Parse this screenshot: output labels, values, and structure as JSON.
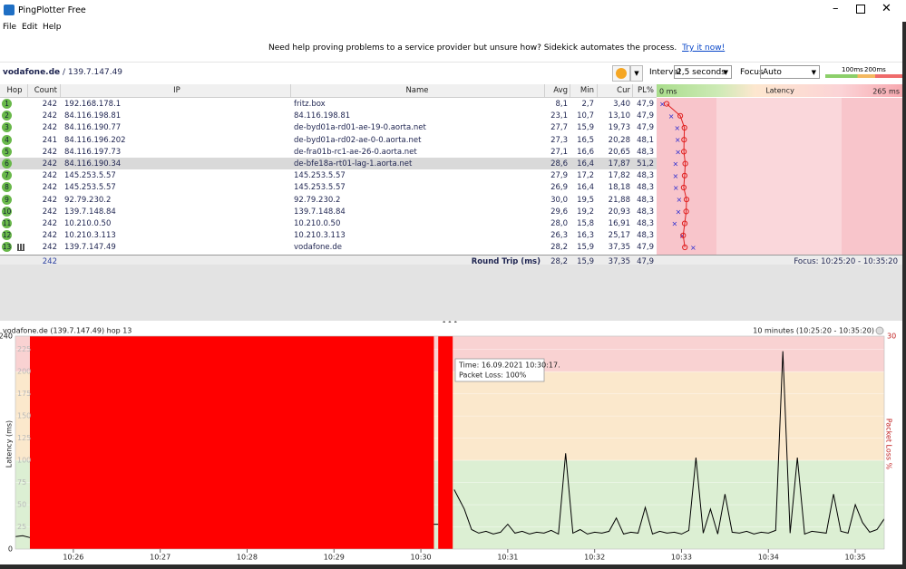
{
  "window": {
    "title": "PingPlotter Free"
  },
  "menu": [
    "File",
    "Edit",
    "Help"
  ],
  "banner": {
    "text": "Need help proving problems to a service provider but unsure how? Sidekick automates the process.",
    "link": "Try it now!"
  },
  "target": {
    "host": "vodafone.de",
    "ip": "/ 139.7.147.49"
  },
  "controls": {
    "interval_label": "Interval",
    "interval": "2,5 seconds",
    "focus_label": "Focus",
    "focus": "Auto",
    "scale_labels": [
      "100ms",
      "200ms"
    ]
  },
  "table": {
    "headers": [
      "Hop",
      "Count",
      "IP",
      "Name",
      "Avg",
      "Min",
      "Cur",
      "PL%"
    ],
    "latency_header": "Latency",
    "latency_scale": [
      {
        "value": 0,
        "label": "0 ms"
      },
      {
        "value": 265,
        "label": "265 ms"
      }
    ],
    "selected_row": 5,
    "rows": [
      {
        "hop": 1,
        "count": 242,
        "ip": "192.168.178.1",
        "name": "fritz.box",
        "avg": "8,1",
        "min": "2,7",
        "cur": "3,40",
        "pl": "47,9"
      },
      {
        "hop": 2,
        "count": 242,
        "ip": "84.116.198.81",
        "name": "84.116.198.81",
        "avg": "23,1",
        "min": "10,7",
        "cur": "13,10",
        "pl": "47,9"
      },
      {
        "hop": 3,
        "count": 242,
        "ip": "84.116.190.77",
        "name": "de-byd01a-rd01-ae-19-0.aorta.net",
        "avg": "27,7",
        "min": "15,9",
        "cur": "19,73",
        "pl": "47,9"
      },
      {
        "hop": 4,
        "count": 241,
        "ip": "84.116.196.202",
        "name": "de-byd01a-rd02-ae-0-0.aorta.net",
        "avg": "27,3",
        "min": "16,5",
        "cur": "20,28",
        "pl": "48,1"
      },
      {
        "hop": 5,
        "count": 242,
        "ip": "84.116.197.73",
        "name": "de-fra01b-rc1-ae-26-0.aorta.net",
        "avg": "27,1",
        "min": "16,6",
        "cur": "20,65",
        "pl": "48,3"
      },
      {
        "hop": 6,
        "count": 242,
        "ip": "84.116.190.34",
        "name": "de-bfe18a-rt01-lag-1.aorta.net",
        "avg": "28,6",
        "min": "16,4",
        "cur": "17,87",
        "pl": "51,2"
      },
      {
        "hop": 7,
        "count": 242,
        "ip": "145.253.5.57",
        "name": "145.253.5.57",
        "avg": "27,9",
        "min": "17,2",
        "cur": "17,82",
        "pl": "48,3"
      },
      {
        "hop": 8,
        "count": 242,
        "ip": "145.253.5.57",
        "name": "145.253.5.57",
        "avg": "26,9",
        "min": "16,4",
        "cur": "18,18",
        "pl": "48,3"
      },
      {
        "hop": 9,
        "count": 242,
        "ip": "92.79.230.2",
        "name": "92.79.230.2",
        "avg": "30,0",
        "min": "19,5",
        "cur": "21,88",
        "pl": "48,3"
      },
      {
        "hop": 10,
        "count": 242,
        "ip": "139.7.148.84",
        "name": "139.7.148.84",
        "avg": "29,6",
        "min": "19,2",
        "cur": "20,93",
        "pl": "48,3"
      },
      {
        "hop": 11,
        "count": 242,
        "ip": "10.210.0.50",
        "name": "10.210.0.50",
        "avg": "28,0",
        "min": "15,8",
        "cur": "16,91",
        "pl": "48,3"
      },
      {
        "hop": 12,
        "count": 242,
        "ip": "10.210.3.113",
        "name": "10.210.3.113",
        "avg": "26,3",
        "min": "16,3",
        "cur": "25,17",
        "pl": "48,3"
      },
      {
        "hop": 13,
        "count": 242,
        "ip": "139.7.147.49",
        "name": "vodafone.de",
        "avg": "28,2",
        "min": "15,9",
        "cur": "37,35",
        "pl": "47,9"
      }
    ],
    "summary": {
      "count": 242,
      "label": "Round Trip (ms)",
      "avg": "28,2",
      "min": "15,9",
      "cur": "37,35",
      "pl": "47,9",
      "focus": "Focus: 10:25:20 - 10:35:20"
    }
  },
  "chart_data": {
    "type": "line",
    "title": "vodafone.de (139.7.147.49) hop 13",
    "subtitle": "10 minutes (10:25:20 - 10:35:20)",
    "ylabel": "Latency (ms)",
    "y2label": "Packet Loss %",
    "xlim": [
      "10:25:20",
      "10:35:20"
    ],
    "xticks": [
      "10:26",
      "10:27",
      "10:28",
      "10:29",
      "10:30",
      "10:31",
      "10:32",
      "10:33",
      "10:34",
      "10:35"
    ],
    "ylim": [
      0,
      240
    ],
    "yticks": [
      0,
      25,
      50,
      75,
      100,
      125,
      150,
      175,
      200,
      225,
      240
    ],
    "y2lim": [
      0,
      30
    ],
    "y2ticks": [
      30
    ],
    "bands": [
      {
        "from": 0,
        "to": 100,
        "color": "#dcefd3"
      },
      {
        "from": 100,
        "to": 200,
        "color": "#fbe8cc"
      },
      {
        "from": 200,
        "to": 240,
        "color": "#f9d2d2"
      }
    ],
    "x": [
      "10:25:20",
      "10:25:25",
      "10:25:30",
      "10:27:00",
      "10:30:09",
      "10:30:12",
      "10:30:15",
      "10:30:23",
      "10:30:30",
      "10:30:35",
      "10:30:40",
      "10:30:45",
      "10:30:50",
      "10:30:55",
      "10:31:00",
      "10:31:05",
      "10:31:10",
      "10:31:15",
      "10:31:20",
      "10:31:25",
      "10:31:30",
      "10:31:35",
      "10:31:40",
      "10:31:45",
      "10:31:50",
      "10:31:55",
      "10:32:00",
      "10:32:05",
      "10:32:10",
      "10:32:15",
      "10:32:20",
      "10:32:25",
      "10:32:30",
      "10:32:35",
      "10:32:40",
      "10:32:45",
      "10:32:50",
      "10:32:55",
      "10:33:00",
      "10:33:05",
      "10:33:10",
      "10:33:15",
      "10:33:20",
      "10:33:25",
      "10:33:30",
      "10:33:35",
      "10:33:40",
      "10:33:45",
      "10:33:50",
      "10:33:55",
      "10:34:00",
      "10:34:05",
      "10:34:10",
      "10:34:15",
      "10:34:20",
      "10:34:25",
      "10:34:30",
      "10:34:35",
      "10:34:40",
      "10:34:45",
      "10:34:50",
      "10:34:55",
      "10:35:00",
      "10:35:05",
      "10:35:10",
      "10:35:15",
      "10:35:20"
    ],
    "series": [
      {
        "color": "#000000",
        "values": [
          14,
          15,
          13,
          null,
          28,
          28,
          null,
          67,
          45,
          22,
          18,
          20,
          17,
          19,
          28,
          18,
          20,
          17,
          19,
          18,
          21,
          17,
          108,
          18,
          22,
          17,
          19,
          18,
          20,
          35,
          17,
          19,
          18,
          47,
          17,
          20,
          18,
          19,
          17,
          21,
          103,
          18,
          45,
          17,
          62,
          19,
          18,
          20,
          17,
          19,
          18,
          21,
          223,
          18,
          103,
          17,
          20,
          19,
          18,
          62,
          20,
          18,
          50,
          30,
          19,
          22,
          34
        ]
      }
    ],
    "loss": {
      "axis": "y2",
      "color": "#ff0000",
      "x_start": [
        "10:25:30",
        "10:30:12"
      ],
      "x_end": [
        "10:30:09",
        "10:30:22"
      ],
      "values": [
        100,
        100
      ]
    },
    "tooltip": {
      "time": "Time: 16.09.2021 10:30:17.",
      "loss": "Packet Loss: 100%"
    }
  }
}
